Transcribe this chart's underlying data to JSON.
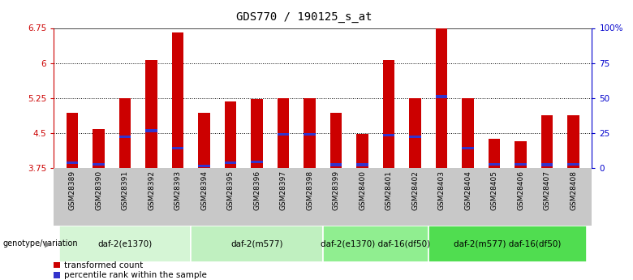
{
  "title": "GDS770 / 190125_s_at",
  "samples": [
    "GSM28389",
    "GSM28390",
    "GSM28391",
    "GSM28392",
    "GSM28393",
    "GSM28394",
    "GSM28395",
    "GSM28396",
    "GSM28397",
    "GSM28398",
    "GSM28399",
    "GSM28400",
    "GSM28401",
    "GSM28402",
    "GSM28403",
    "GSM28404",
    "GSM28405",
    "GSM28406",
    "GSM28407",
    "GSM28408"
  ],
  "bar_heights": [
    4.93,
    4.58,
    5.25,
    6.07,
    6.66,
    4.93,
    5.17,
    5.22,
    5.25,
    5.25,
    4.93,
    4.48,
    6.07,
    5.25,
    6.75,
    5.25,
    4.38,
    4.33,
    4.88,
    4.88
  ],
  "blue_markers": [
    3.87,
    3.83,
    4.42,
    4.55,
    4.18,
    3.8,
    3.87,
    3.88,
    4.47,
    4.47,
    3.82,
    3.82,
    4.45,
    4.42,
    5.28,
    4.18,
    3.83,
    3.83,
    3.82,
    3.83
  ],
  "bar_color": "#cc0000",
  "blue_color": "#3333cc",
  "y_min": 3.75,
  "y_max": 6.75,
  "yticks_left": [
    3.75,
    4.5,
    5.25,
    6.0,
    6.75
  ],
  "ytick_labels_left": [
    "3.75",
    "4.5",
    "5.25",
    "6",
    "6.75"
  ],
  "ytick_labels_right": [
    "0",
    "25",
    "50",
    "75",
    "100%"
  ],
  "grid_lines": [
    4.5,
    5.25,
    6.0
  ],
  "groups": [
    {
      "label": "daf-2(e1370)",
      "start": 0,
      "end": 5,
      "color": "#d5f5d5"
    },
    {
      "label": "daf-2(m577)",
      "start": 5,
      "end": 10,
      "color": "#c0f0c0"
    },
    {
      "label": "daf-2(e1370) daf-16(df50)",
      "start": 10,
      "end": 14,
      "color": "#90ee90"
    },
    {
      "label": "daf-2(m577) daf-16(df50)",
      "start": 14,
      "end": 20,
      "color": "#50dd50"
    }
  ],
  "group_label": "genotype/variation",
  "legend_items": [
    {
      "color": "#cc0000",
      "label": "transformed count"
    },
    {
      "color": "#3333cc",
      "label": "percentile rank within the sample"
    }
  ],
  "bg_color": "#ffffff",
  "bar_width": 0.45,
  "title_fontsize": 10,
  "xtick_gray": "#c8c8c8"
}
